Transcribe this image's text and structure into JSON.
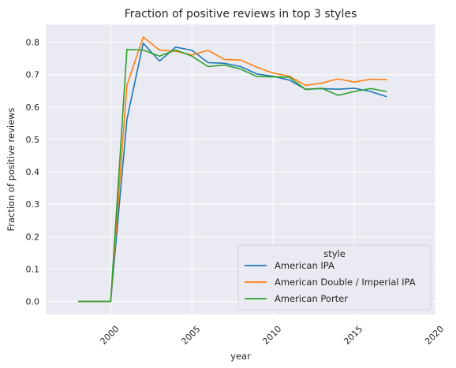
{
  "chart_data": {
    "type": "line",
    "title": "Fraction of positive reviews in top 3 styles",
    "xlabel": "year",
    "ylabel": "Fraction of positive reviews",
    "xlim": [
      1996,
      2020
    ],
    "ylim": [
      -0.04,
      0.855
    ],
    "xticks": [
      2000,
      2005,
      2010,
      2015,
      2020
    ],
    "yticks": [
      0.0,
      0.1,
      0.2,
      0.3,
      0.4,
      0.5,
      0.6,
      0.7,
      0.8
    ],
    "grid": true,
    "legend": {
      "title": "style",
      "placement": "lower-right"
    },
    "x": [
      1998,
      1999,
      2000,
      2001,
      2002,
      2003,
      2004,
      2005,
      2006,
      2007,
      2008,
      2009,
      2010,
      2011,
      2012,
      2013,
      2014,
      2015,
      2016,
      2017
    ],
    "series": [
      {
        "name": "American IPA",
        "color": "#1f77b4",
        "values": [
          0.0,
          0.0,
          0.0,
          0.562,
          0.797,
          0.742,
          0.785,
          0.775,
          0.737,
          0.735,
          0.725,
          0.702,
          0.695,
          0.683,
          0.655,
          0.657,
          0.655,
          0.658,
          0.648,
          0.632
        ]
      },
      {
        "name": "American Double / Imperial IPA",
        "color": "#ff7f0e",
        "values": [
          0.0,
          0.0,
          0.0,
          0.667,
          0.816,
          0.776,
          0.772,
          0.761,
          0.775,
          0.747,
          0.745,
          0.723,
          0.705,
          0.695,
          0.667,
          0.674,
          0.687,
          0.677,
          0.686,
          0.685
        ]
      },
      {
        "name": "American Porter",
        "color": "#2ca02c",
        "values": [
          0.0,
          0.0,
          0.0,
          0.778,
          0.776,
          0.757,
          0.776,
          0.757,
          0.725,
          0.73,
          0.717,
          0.694,
          0.693,
          0.692,
          0.654,
          0.658,
          0.636,
          0.648,
          0.657,
          0.648
        ]
      }
    ]
  }
}
